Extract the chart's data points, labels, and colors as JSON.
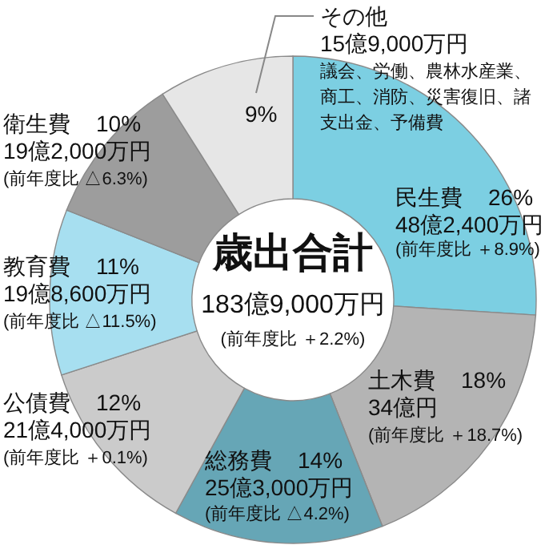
{
  "chart_data": {
    "type": "donut",
    "title": "歳出合計",
    "subtitle": "183億9,000万円",
    "categories": [
      "民生費",
      "土木費",
      "総務費",
      "公債費",
      "教育費",
      "衛生費",
      "その他"
    ],
    "values": [
      26,
      18,
      14,
      12,
      11,
      10,
      9
    ],
    "colors": [
      "#7ccfe2",
      "#b4b4b4",
      "#66a6b6",
      "#cbcbcb",
      "#a7dff0",
      "#9d9d9d",
      "#e6e6e6"
    ],
    "value_labels": [
      "26%",
      "18%",
      "14%",
      "12%",
      "11%",
      "10%",
      "9%"
    ],
    "annotations": [
      "48億2,400万円",
      "(前年度比 ＋8.9%)",
      "34億円",
      "(前年度比 ＋18.7%)",
      "25億3,000万円",
      "(前年度比 △4.2%)",
      "21億4,000万円",
      "(前年度比 ＋0.1%)",
      "19億8,600万円",
      "(前年度比 △11.5%)",
      "19億2,000万円",
      "(前年度比 △6.3%)",
      "15億9,000万円",
      "議会、労働、農林水産業、",
      "商工、消防、災害復旧、諸",
      "支出金、予備費",
      "(前年度比 ＋2.2%)"
    ]
  }
}
